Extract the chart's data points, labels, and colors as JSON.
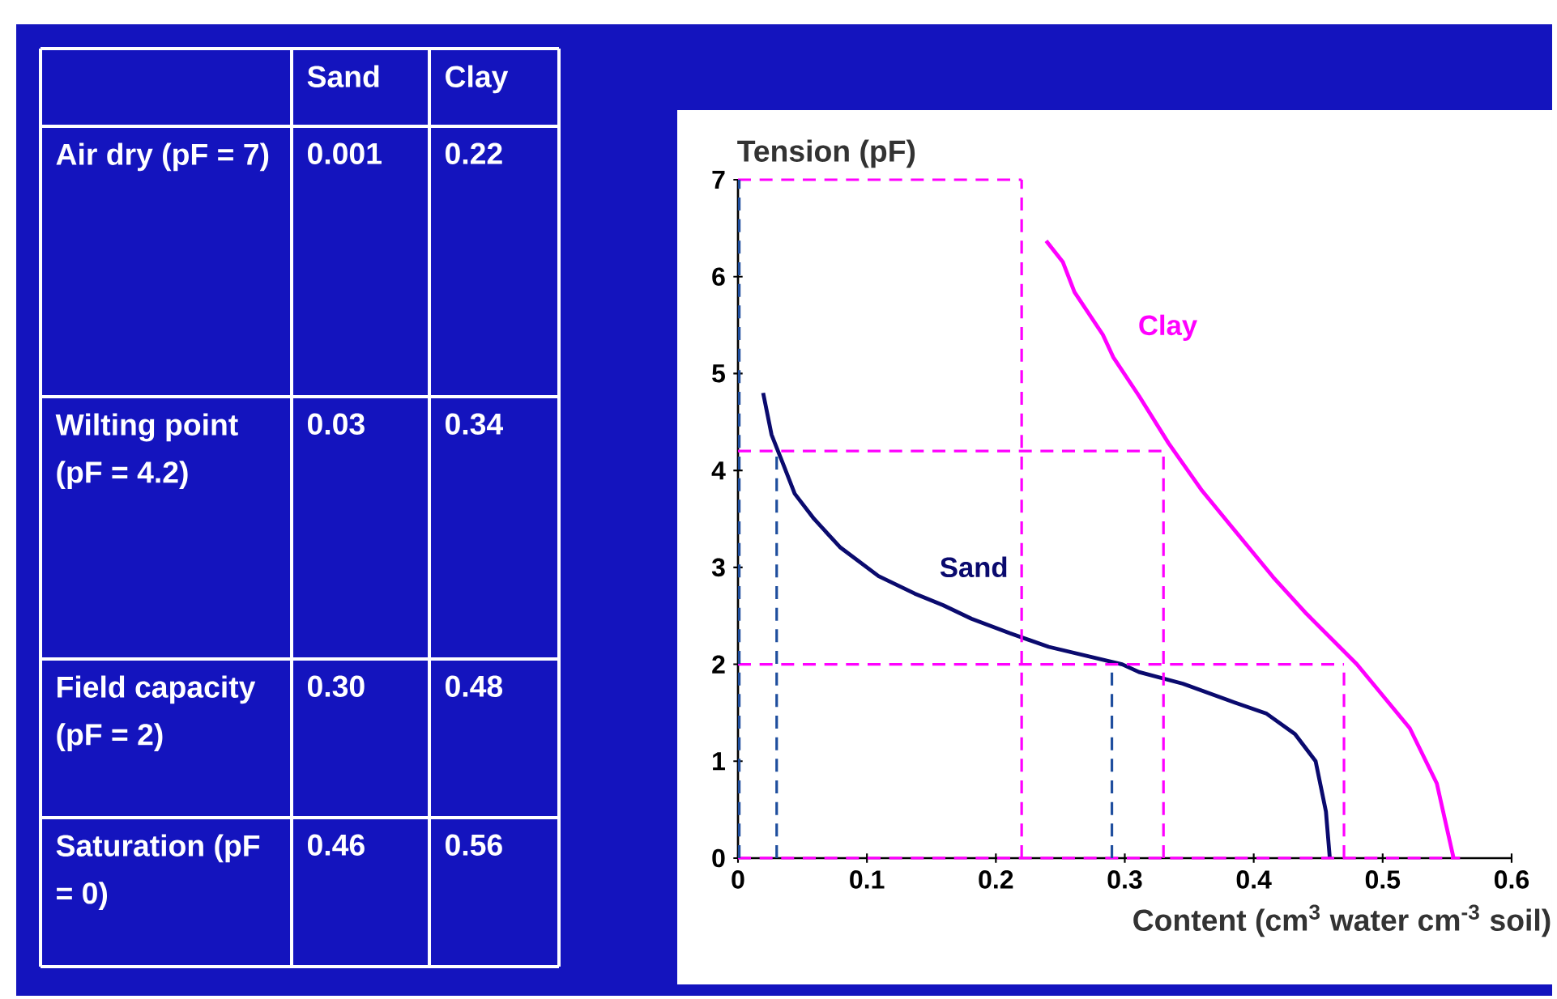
{
  "chart_data": {
    "type": "line",
    "xlabel": "Content (cm$^{3}$ water cm$^{-3}$ soil)",
    "ylabel": "Tension (pF)",
    "xlim": [
      0,
      0.6
    ],
    "ylim": [
      0,
      7
    ],
    "xticks": [
      0,
      0.1,
      0.2,
      0.3,
      0.4,
      0.5,
      0.6
    ],
    "yticks": [
      0,
      1,
      2,
      3,
      4,
      5,
      6,
      7
    ],
    "line_style": "solid",
    "series": [
      {
        "name": "Sand",
        "color": "#0a0a6e",
        "x": [
          0.0195,
          0.026,
          0.0355,
          0.044,
          0.059,
          0.079,
          0.109,
          0.137,
          0.159,
          0.181,
          0.211,
          0.241,
          0.298,
          0.311,
          0.345,
          0.38,
          0.41,
          0.432,
          0.448,
          0.456,
          0.459
        ],
        "values": [
          4.8,
          4.37,
          4.05,
          3.76,
          3.5,
          3.21,
          2.91,
          2.73,
          2.61,
          2.47,
          2.32,
          2.18,
          2.0,
          1.92,
          1.8,
          1.63,
          1.49,
          1.28,
          1.0,
          0.48,
          0
        ]
      },
      {
        "name": "Clay",
        "color": "#ff00ff",
        "x": [
          0.239,
          0.252,
          0.261,
          0.283,
          0.291,
          0.311,
          0.334,
          0.36,
          0.415,
          0.441,
          0.48,
          0.521,
          0.542,
          0.555
        ],
        "values": [
          6.37,
          6.15,
          5.84,
          5.4,
          5.17,
          4.77,
          4.28,
          3.79,
          2.9,
          2.52,
          2.0,
          1.34,
          0.77,
          0
        ]
      },
      {
        "color": "#ff00ff",
        "line_style": "dashed",
        "x": [
          0,
          0.22
        ],
        "values": [
          7,
          7
        ]
      },
      {
        "color": "#ff00ff",
        "line_style": "dashed",
        "x": [
          0,
          0.33
        ],
        "values": [
          4.2,
          4.2
        ]
      },
      {
        "color": "#ff00ff",
        "line_style": "dashed",
        "x": [
          0,
          0.47
        ],
        "values": [
          2,
          2
        ]
      },
      {
        "color": "#ff00ff",
        "line_style": "dashed",
        "x": [
          0,
          0.56
        ],
        "values": [
          0,
          0
        ]
      },
      {
        "color": "#ff00ff",
        "line_style": "dashed",
        "x": [
          0.22,
          0.22
        ],
        "values": [
          0,
          7
        ]
      },
      {
        "color": "#ff00ff",
        "line_style": "dashed",
        "x": [
          0.33,
          0.33
        ],
        "values": [
          0,
          4.2
        ]
      },
      {
        "color": "#ff00ff",
        "line_style": "dashed",
        "x": [
          0.47,
          0.47
        ],
        "values": [
          0,
          2
        ]
      },
      {
        "color": "#1f4e9e",
        "line_style": "dashed",
        "x": [
          0.001,
          0.001
        ],
        "values": [
          0,
          7
        ]
      },
      {
        "color": "#1f4e9e",
        "line_style": "dashed",
        "x": [
          0.03,
          0.03
        ],
        "values": [
          0,
          4.2
        ]
      },
      {
        "color": "#1f4e9e",
        "line_style": "dashed",
        "x": [
          0.29,
          0.29
        ],
        "values": [
          0,
          2
        ]
      }
    ],
    "annotations": [
      "Sand",
      "Clay",
      "Air dry (pF = 7)",
      "0.001",
      "0.22",
      "Wilting point (pF = 4.2)",
      "0.03",
      "0.34",
      "Field capacity (pF = 2)",
      "0.30",
      "0.48",
      "Saturation (pF = 0)",
      "0.46",
      "0.56"
    ]
  }
}
